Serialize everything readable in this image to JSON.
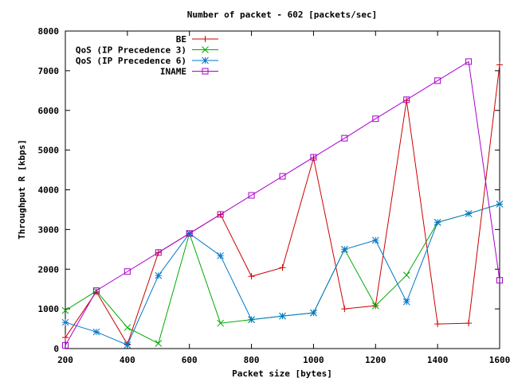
{
  "chart_data": {
    "type": "line",
    "title": "Number of packet - 602 [packets/sec]",
    "xlabel": "Packet size [bytes]",
    "ylabel": "Throughput R [kbps]",
    "xlim": [
      200,
      1600
    ],
    "ylim": [
      0,
      8000
    ],
    "xticks": [
      "200",
      "400",
      "600",
      "800",
      "1000",
      "1200",
      "1400",
      "1600"
    ],
    "yticks": [
      "0",
      "1000",
      "2000",
      "3000",
      "4000",
      "5000",
      "6000",
      "7000",
      "8000"
    ],
    "grid": false,
    "legend_position": "top-right",
    "series": [
      {
        "name": "BE",
        "color": "#cc0000",
        "marker": "plus",
        "x": [
          200,
          300,
          400,
          500,
          600,
          700,
          800,
          900,
          1000,
          1100,
          1200,
          1300,
          1400,
          1500,
          1600
        ],
        "y": [
          280,
          1430,
          110,
          2420,
          2900,
          3380,
          1820,
          2040,
          4800,
          1000,
          1080,
          6250,
          620,
          640,
          7150
        ]
      },
      {
        "name": "QoS (IP Precedence 3)",
        "color": "#00aa00",
        "marker": "cross",
        "x": [
          200,
          300,
          400,
          500,
          600,
          700,
          800,
          900,
          1000,
          1100,
          1200,
          1300,
          1400,
          1500,
          1600
        ],
        "y": [
          960,
          1450,
          530,
          130,
          2900,
          640,
          730,
          820,
          900,
          2500,
          1080,
          1850,
          3180,
          3400,
          3640
        ]
      },
      {
        "name": "QoS (IP Precedence 6)",
        "color": "#0077cc",
        "marker": "star",
        "x": [
          200,
          300,
          400,
          500,
          600,
          700,
          800,
          900,
          1000,
          1100,
          1200,
          1300,
          1400,
          1500,
          1600
        ],
        "y": [
          660,
          420,
          90,
          1840,
          2900,
          2340,
          730,
          820,
          900,
          2500,
          2730,
          1180,
          3180,
          3400,
          3640
        ]
      },
      {
        "name": "INAME",
        "color": "#aa00cc",
        "marker": "square",
        "x": [
          200,
          300,
          400,
          500,
          600,
          700,
          800,
          900,
          1000,
          1100,
          1200,
          1300,
          1400,
          1500,
          1600
        ],
        "y": [
          80,
          1460,
          1940,
          2420,
          2900,
          3380,
          3860,
          4340,
          4820,
          5300,
          5790,
          6270,
          6750,
          7230,
          1720
        ]
      }
    ]
  }
}
